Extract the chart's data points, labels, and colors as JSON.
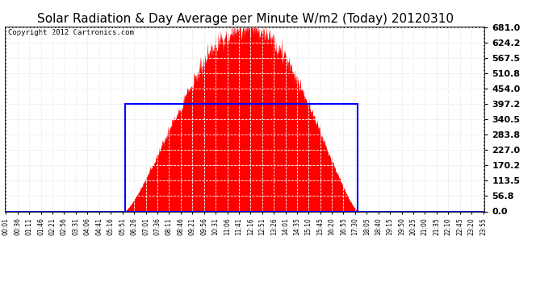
{
  "title": "Solar Radiation & Day Average per Minute W/m2 (Today) 20120310",
  "copyright": "Copyright 2012 Cartronics.com",
  "y_min": 0.0,
  "y_max": 681.0,
  "y_ticks": [
    0.0,
    56.8,
    113.5,
    170.2,
    227.0,
    283.8,
    340.5,
    397.2,
    454.0,
    510.8,
    567.5,
    624.2,
    681.0
  ],
  "total_minutes": 1440,
  "solar_start_minute": 358,
  "solar_peak_minute": 733,
  "solar_end_minute": 1058,
  "solar_peak_value": 681.0,
  "avg_value": 397.2,
  "avg_start_minute": 358,
  "avg_end_minute": 1058,
  "fill_color": "#FF0000",
  "avg_line_color": "#0000FF",
  "bg_color": "#FFFFFF",
  "plot_bg_color": "#FFFFFF",
  "title_color": "#000000",
  "copyright_color": "#000000",
  "title_fontsize": 11,
  "copyright_fontsize": 6.5,
  "ytick_fontsize": 8,
  "xtick_fontsize": 5.5,
  "x_tick_labels": [
    "00:01",
    "00:36",
    "01:11",
    "01:46",
    "02:21",
    "02:56",
    "03:31",
    "04:06",
    "04:41",
    "05:16",
    "05:51",
    "06:26",
    "07:01",
    "07:36",
    "08:11",
    "08:46",
    "09:21",
    "09:56",
    "10:31",
    "11:06",
    "11:41",
    "12:16",
    "12:51",
    "13:26",
    "14:01",
    "14:35",
    "15:10",
    "15:45",
    "16:20",
    "16:55",
    "17:30",
    "18:05",
    "18:40",
    "19:15",
    "19:50",
    "20:25",
    "21:00",
    "21:35",
    "22:10",
    "22:45",
    "23:20",
    "23:55"
  ],
  "x_tick_positions_minutes": [
    1,
    36,
    71,
    106,
    141,
    176,
    211,
    246,
    281,
    316,
    351,
    386,
    421,
    456,
    491,
    526,
    561,
    596,
    631,
    666,
    701,
    736,
    771,
    806,
    841,
    875,
    910,
    945,
    980,
    1015,
    1050,
    1085,
    1120,
    1155,
    1190,
    1225,
    1260,
    1295,
    1330,
    1365,
    1400,
    1435
  ]
}
